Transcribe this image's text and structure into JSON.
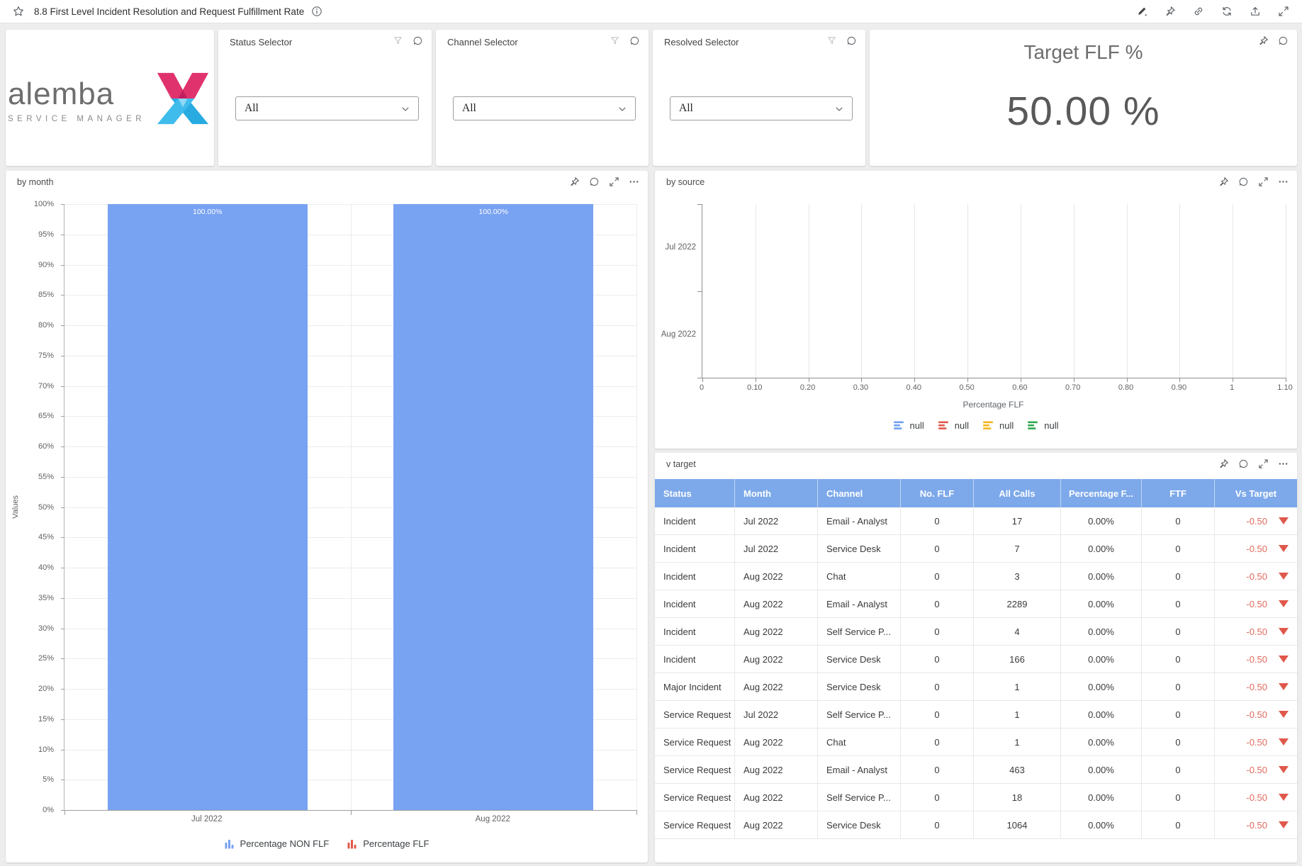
{
  "title_bar": {
    "title": "8.8 First Level Incident Resolution and Request Fulfillment Rate",
    "left_icons": [
      "star",
      "info"
    ],
    "right_icons": [
      "edit",
      "pin",
      "link",
      "refresh",
      "export",
      "expand"
    ]
  },
  "logo": {
    "brand": "alemba",
    "tagline": "SERVICE MANAGER"
  },
  "filters": [
    {
      "label": "Status Selector",
      "value": "All"
    },
    {
      "label": "Channel Selector",
      "value": "All"
    },
    {
      "label": "Resolved Selector",
      "value": "All"
    }
  ],
  "target_card": {
    "title": "Target FLF %",
    "value": "50.00 %"
  },
  "colors": {
    "bar_blue": "#78a2f2",
    "table_header_blue": "#7da9ea",
    "negative_red": "#e06a5c",
    "legend_blue": "#6f9ff0",
    "legend_red": "#e2594d",
    "legend_yellow": "#f5b51e",
    "legend_green": "#34a853"
  },
  "chart_data": [
    {
      "id": "by_month",
      "type": "bar",
      "title": "by month",
      "categories": [
        "Jul 2022",
        "Aug 2022"
      ],
      "series": [
        {
          "name": "Percentage NON FLF",
          "color": "#78a2f2",
          "values": [
            100,
            100
          ],
          "labels": [
            "100.00%",
            "100.00%"
          ]
        },
        {
          "name": "Percentage FLF",
          "color": "#e2594d",
          "values": [
            0,
            0
          ],
          "labels": [
            "",
            ""
          ]
        }
      ],
      "xlabel": "",
      "ylabel": "Values",
      "ylim": [
        0,
        100
      ],
      "ytick_step": 5,
      "ytick_suffix": "%",
      "grid": true,
      "legend_position": "bottom"
    },
    {
      "id": "by_source",
      "type": "bar",
      "orientation": "horizontal",
      "title": "by source",
      "categories": [
        "Jul 2022",
        "Aug 2022"
      ],
      "series": [
        {
          "name": "null",
          "color": "#6f9ff0",
          "values": []
        },
        {
          "name": "null",
          "color": "#e2594d",
          "values": []
        },
        {
          "name": "null",
          "color": "#f5b51e",
          "values": []
        },
        {
          "name": "null",
          "color": "#34a853",
          "values": []
        }
      ],
      "xlabel": "Percentage FLF",
      "xlim": [
        0,
        1.1
      ],
      "xticks": [
        "0",
        "0.10",
        "0.20",
        "0.30",
        "0.40",
        "0.50",
        "0.60",
        "0.70",
        "0.80",
        "0.90",
        "1",
        "1.10"
      ],
      "grid": true,
      "legend_position": "bottom"
    }
  ],
  "v_target": {
    "title": "v target",
    "columns": [
      "Status",
      "Month",
      "Channel",
      "No. FLF",
      "All Calls",
      "Percentage F...",
      "FTF",
      "Vs Target"
    ],
    "rows": [
      {
        "status": "Incident",
        "month": "Jul 2022",
        "channel": "Email - Analyst",
        "no_flf": "0",
        "all_calls": "17",
        "percentage": "0.00%",
        "ftf": "0",
        "vs_target": "-0.50",
        "trend": "down"
      },
      {
        "status": "Incident",
        "month": "Jul 2022",
        "channel": "Service Desk",
        "no_flf": "0",
        "all_calls": "7",
        "percentage": "0.00%",
        "ftf": "0",
        "vs_target": "-0.50",
        "trend": "down"
      },
      {
        "status": "Incident",
        "month": "Aug 2022",
        "channel": "Chat",
        "no_flf": "0",
        "all_calls": "3",
        "percentage": "0.00%",
        "ftf": "0",
        "vs_target": "-0.50",
        "trend": "down"
      },
      {
        "status": "Incident",
        "month": "Aug 2022",
        "channel": "Email - Analyst",
        "no_flf": "0",
        "all_calls": "2289",
        "percentage": "0.00%",
        "ftf": "0",
        "vs_target": "-0.50",
        "trend": "down"
      },
      {
        "status": "Incident",
        "month": "Aug 2022",
        "channel": "Self Service P...",
        "no_flf": "0",
        "all_calls": "4",
        "percentage": "0.00%",
        "ftf": "0",
        "vs_target": "-0.50",
        "trend": "down"
      },
      {
        "status": "Incident",
        "month": "Aug 2022",
        "channel": "Service Desk",
        "no_flf": "0",
        "all_calls": "166",
        "percentage": "0.00%",
        "ftf": "0",
        "vs_target": "-0.50",
        "trend": "down"
      },
      {
        "status": "Major Incident",
        "month": "Aug 2022",
        "channel": "Service Desk",
        "no_flf": "0",
        "all_calls": "1",
        "percentage": "0.00%",
        "ftf": "0",
        "vs_target": "-0.50",
        "trend": "down"
      },
      {
        "status": "Service Request",
        "month": "Jul 2022",
        "channel": "Self Service P...",
        "no_flf": "0",
        "all_calls": "1",
        "percentage": "0.00%",
        "ftf": "0",
        "vs_target": "-0.50",
        "trend": "down"
      },
      {
        "status": "Service Request",
        "month": "Aug 2022",
        "channel": "Chat",
        "no_flf": "0",
        "all_calls": "1",
        "percentage": "0.00%",
        "ftf": "0",
        "vs_target": "-0.50",
        "trend": "down"
      },
      {
        "status": "Service Request",
        "month": "Aug 2022",
        "channel": "Email - Analyst",
        "no_flf": "0",
        "all_calls": "463",
        "percentage": "0.00%",
        "ftf": "0",
        "vs_target": "-0.50",
        "trend": "down"
      },
      {
        "status": "Service Request",
        "month": "Aug 2022",
        "channel": "Self Service P...",
        "no_flf": "0",
        "all_calls": "18",
        "percentage": "0.00%",
        "ftf": "0",
        "vs_target": "-0.50",
        "trend": "down"
      },
      {
        "status": "Service Request",
        "month": "Aug 2022",
        "channel": "Service Desk",
        "no_flf": "0",
        "all_calls": "1064",
        "percentage": "0.00%",
        "ftf": "0",
        "vs_target": "-0.50",
        "trend": "down"
      }
    ]
  }
}
